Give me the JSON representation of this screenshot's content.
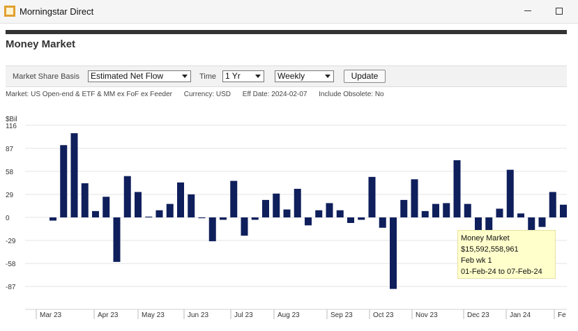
{
  "window": {
    "title": "Morningstar Direct"
  },
  "page": {
    "title": "Money Market"
  },
  "toolbar": {
    "basis_label": "Market Share Basis",
    "basis_value": "Estimated Net Flow",
    "time_label": "Time",
    "time_value": "1 Yr",
    "frequency_value": "Weekly",
    "update_label": "Update"
  },
  "info": {
    "market": "Market: US Open-end & ETF & MM ex FoF ex Feeder",
    "currency": "Currency: USD",
    "eff_date": "Eff Date: 2024-02-07",
    "include_obsolete": "Include Obsolete: No"
  },
  "tooltip": {
    "name": "Money Market",
    "value": "$15,592,558,961",
    "period": "Feb wk 1",
    "range": "01-Feb-24 to 07-Feb-24"
  },
  "chart_data": {
    "type": "bar",
    "ylabel": "$Bil",
    "ylim": [
      -116,
      116
    ],
    "yticks": [
      116,
      87,
      58,
      29,
      0,
      -29,
      -58,
      -87
    ],
    "grid": true,
    "bar_color": "#0f1f5c",
    "month_labels": [
      "Mar 23",
      "Apr 23",
      "May 23",
      "Jun 23",
      "Jul 23",
      "Aug 23",
      "Sep 23",
      "Oct 23",
      "Nov 23",
      "Dec 23",
      "Jan 24",
      "Fe"
    ],
    "values": [
      -4,
      91,
      106,
      43,
      8,
      26,
      -56,
      52,
      32,
      1,
      9,
      17,
      44,
      29,
      -1,
      -30,
      -3,
      46,
      -23,
      -3,
      22,
      30,
      10,
      36,
      -10,
      9,
      18,
      9,
      -7,
      -3,
      51,
      -13,
      -90,
      22,
      48,
      8,
      17,
      18,
      72,
      17,
      -18,
      -17,
      11,
      60,
      5,
      -16,
      -12,
      32,
      16
    ]
  }
}
